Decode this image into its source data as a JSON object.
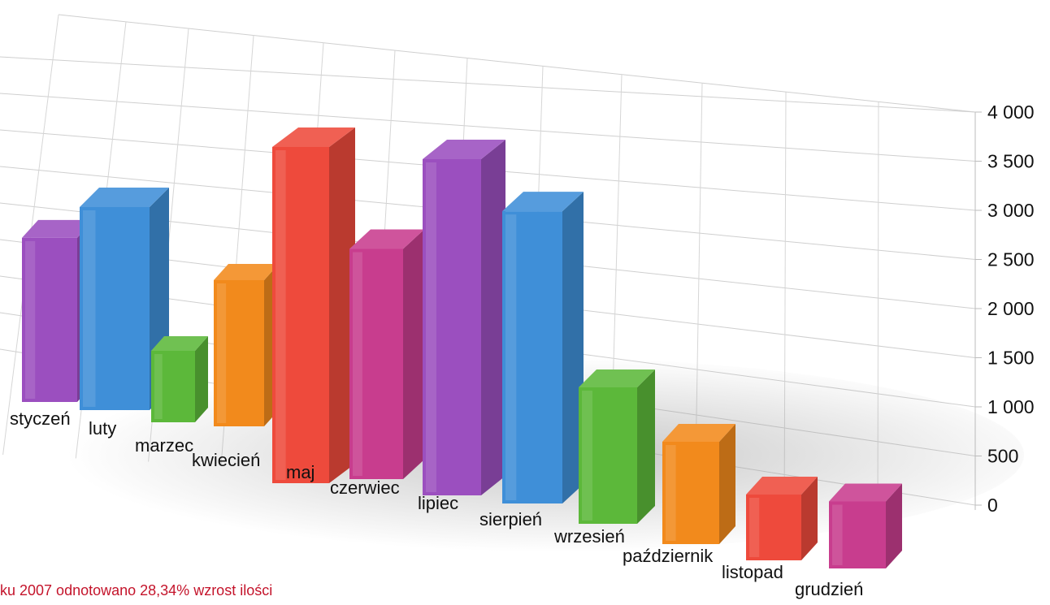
{
  "chart_data": {
    "type": "bar",
    "style": "3d",
    "categories": [
      "styczeń",
      "luty",
      "marzec",
      "kwiecień",
      "maj",
      "czerwiec",
      "lipiec",
      "sierpień",
      "wrzesień",
      "październik",
      "listopad",
      "grudzień"
    ],
    "values": [
      2150,
      2500,
      1100,
      1800,
      3600,
      2700,
      3600,
      3050,
      1600,
      1050,
      600,
      550
    ],
    "y_ticks": [
      "0",
      "500",
      "1 000",
      "1 500",
      "2 000",
      "2 500",
      "3 000",
      "3 500",
      "4 000"
    ],
    "ylim": [
      0,
      4000
    ],
    "grid": true,
    "legend": "none",
    "colors": [
      "#9b4fbf",
      "#3f8fd8",
      "#5cb83a",
      "#f28a1c",
      "#ee4a3c",
      "#c83d8e",
      "#9b4fbf",
      "#3f8fd8",
      "#5cb83a",
      "#f28a1c",
      "#ee4a3c",
      "#c83d8e"
    ]
  },
  "footer_text": "ku 2007 odnotowano 28,34% wzrost ilości"
}
